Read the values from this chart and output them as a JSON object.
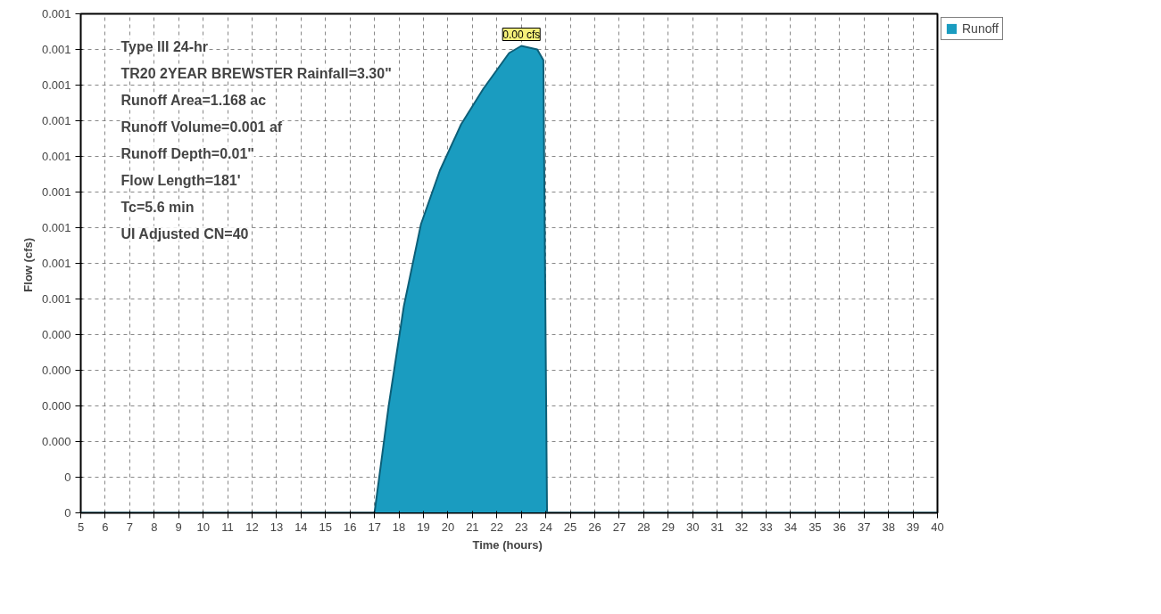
{
  "chart_data": {
    "type": "area",
    "xlabel": "Time  (hours)",
    "ylabel": "Flow  (cfs)",
    "x": [
      5,
      17.0,
      17.58,
      18.2,
      18.9,
      19.67,
      20.54,
      21.45,
      22.5,
      23.0,
      23.65,
      23.9,
      24.05,
      40
    ],
    "series": [
      {
        "name": "Runoff",
        "color": "#1a9cc0",
        "values": [
          0,
          0,
          0.0003,
          0.00058,
          0.00081,
          0.00096,
          0.00109,
          0.00119,
          0.00129,
          0.00131,
          0.0013,
          0.00127,
          0,
          0
        ]
      }
    ],
    "xlim": [
      5,
      40
    ],
    "xticks": [
      5,
      6,
      7,
      8,
      9,
      10,
      11,
      12,
      13,
      14,
      15,
      16,
      17,
      18,
      19,
      20,
      21,
      22,
      23,
      24,
      25,
      26,
      27,
      28,
      29,
      30,
      31,
      32,
      33,
      34,
      35,
      36,
      37,
      38,
      39,
      40
    ],
    "ylim": [
      0,
      0.0014
    ],
    "yticks": [
      {
        "value": 0,
        "label": "0"
      },
      {
        "value": 0.0001,
        "label": "0"
      },
      {
        "value": 0.0002,
        "label": "0.000"
      },
      {
        "value": 0.0003,
        "label": "0.000"
      },
      {
        "value": 0.0004,
        "label": "0.000"
      },
      {
        "value": 0.0005,
        "label": "0.000"
      },
      {
        "value": 0.0006,
        "label": "0.001"
      },
      {
        "value": 0.0007,
        "label": "0.001"
      },
      {
        "value": 0.0008,
        "label": "0.001"
      },
      {
        "value": 0.0009,
        "label": "0.001"
      },
      {
        "value": 0.001,
        "label": "0.001"
      },
      {
        "value": 0.0011,
        "label": "0.001"
      },
      {
        "value": 0.0012,
        "label": "0.001"
      },
      {
        "value": 0.0013,
        "label": "0.001"
      },
      {
        "value": 0.0014,
        "label": "0.001"
      }
    ],
    "annotations": [
      {
        "text": "0.00 cfs",
        "x": 23.0,
        "y": 0.00131
      },
      "Type III 24-hr",
      "TR20 2YEAR BREWSTER Rainfall=3.30\"",
      "Runoff Area=1.168 ac",
      "Runoff Volume=0.001 af",
      "Runoff Depth=0.01\"",
      "Flow Length=181'",
      "Tc=5.6 min",
      "UI Adjusted CN=40"
    ],
    "grid": true,
    "legend": "top right",
    "line_style": "solid"
  }
}
